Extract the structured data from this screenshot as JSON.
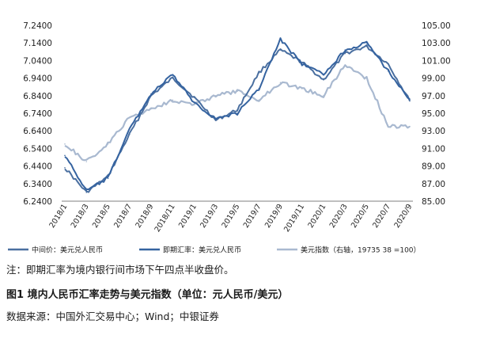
{
  "chart_data": {
    "type": "line",
    "title": "",
    "x": [
      "2018/1",
      "2018/3",
      "2018/5",
      "2018/7",
      "2018/9",
      "2018/11",
      "2019/1",
      "2019/3",
      "2019/5",
      "2019/7",
      "2019/9",
      "2019/11",
      "2020/1",
      "2020/3",
      "2020/5",
      "2020/7",
      "2020/9"
    ],
    "left_axis": {
      "ticks": [
        "7.2400",
        "7.1400",
        "7.0400",
        "6.9400",
        "6.8400",
        "6.7400",
        "6.6400",
        "6.5400",
        "6.4400",
        "6.3400",
        "6.2400"
      ],
      "ylim": [
        6.24,
        7.24
      ]
    },
    "right_axis": {
      "ticks": [
        "105.00",
        "103.00",
        "101.00",
        "99.00",
        "97.00",
        "95.00",
        "93.00",
        "91.00",
        "89.00",
        "87.00",
        "85.00"
      ],
      "ylim": [
        85,
        105
      ]
    },
    "grid": false,
    "legend_position": "bottom",
    "series": [
      {
        "name": "中间价：美元兑人民币",
        "axis": "left",
        "color": "#4a6fa0",
        "values": [
          6.43,
          6.29,
          6.38,
          6.62,
          6.84,
          6.94,
          6.83,
          6.7,
          6.76,
          6.97,
          7.1,
          7.03,
          6.93,
          7.08,
          7.12,
          7.02,
          6.81
        ]
      },
      {
        "name": "即期汇率：美元兑人民币",
        "axis": "left",
        "color": "#3563a0",
        "values": [
          6.5,
          6.3,
          6.37,
          6.65,
          6.85,
          6.96,
          6.8,
          6.71,
          6.74,
          6.88,
          7.16,
          7.02,
          6.96,
          7.1,
          7.14,
          6.98,
          6.82
        ]
      },
      {
        "name": "美元指数（右轴，19735 38 =100）",
        "axis": "right",
        "color": "#a9b9d0",
        "values": [
          91.5,
          89.5,
          91.5,
          94.5,
          95.5,
          96.5,
          96.0,
          97.0,
          97.5,
          96.5,
          98.5,
          97.8,
          97.0,
          100.5,
          99.0,
          93.5,
          93.5
        ]
      }
    ]
  },
  "note": "注：即期汇率为境内银行间市场下午四点半收盘价。",
  "figure_title": "图1  境内人民币汇率走势与美元指数（单位：元人民币/美元）",
  "source": "数据来源：中国外汇交易中心；Wind；中银证券"
}
